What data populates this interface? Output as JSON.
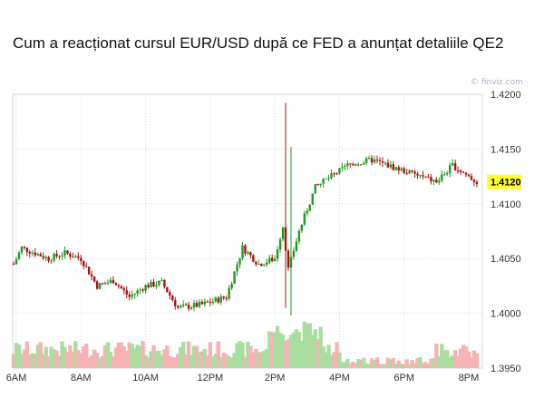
{
  "title": "Cum a reacționat cursul EUR/USD după ce FED a anunțat detaliile QE2",
  "watermark": "© finviz.com",
  "colors": {
    "up": "#1e9a1e",
    "down": "#a31515",
    "volume_up": "#a9dea0",
    "volume_down": "#f5b3b3",
    "grid": "#d9d9d9",
    "last_price_bg": "#ffff33"
  },
  "chart_data": {
    "type": "candlestick",
    "pair": "EUR/USD",
    "x_ticks": [
      "6AM",
      "8AM",
      "10AM",
      "12PM",
      "2PM",
      "4PM",
      "6PM",
      "8PM"
    ],
    "y_ticks": [
      "1.4200",
      "1.4150",
      "1.4100",
      "1.4050",
      "1.4000",
      "1.3950"
    ],
    "ylim": [
      1.395,
      1.42
    ],
    "last_price": "1.4120",
    "grid": true,
    "ohlc_keypoints": [
      {
        "time": "5:55AM",
        "price": 1.4045
      },
      {
        "time": "6:10AM",
        "price": 1.406
      },
      {
        "time": "7:00AM",
        "price": 1.405
      },
      {
        "time": "7:30AM",
        "price": 1.4055
      },
      {
        "time": "8:00AM",
        "price": 1.405
      },
      {
        "time": "8:30AM",
        "price": 1.4025
      },
      {
        "time": "9:00AM",
        "price": 1.403
      },
      {
        "time": "9:30AM",
        "price": 1.4015
      },
      {
        "time": "10:00AM",
        "price": 1.4025
      },
      {
        "time": "10:30AM",
        "price": 1.4028
      },
      {
        "time": "11:00AM",
        "price": 1.4005
      },
      {
        "time": "11:45AM",
        "price": 1.4008
      },
      {
        "time": "12:30PM",
        "price": 1.4015
      },
      {
        "time": "1:00PM",
        "price": 1.406
      },
      {
        "time": "1:30PM",
        "price": 1.4045
      },
      {
        "time": "2:00PM",
        "price": 1.405
      },
      {
        "time": "2:15PM",
        "price": 1.408
      },
      {
        "time": "2:25PM",
        "price": 1.404
      },
      {
        "time": "2:45PM",
        "price": 1.4075
      },
      {
        "time": "3:15PM",
        "price": 1.4115
      },
      {
        "time": "3:45PM",
        "price": 1.4125
      },
      {
        "time": "4:15PM",
        "price": 1.4135
      },
      {
        "time": "5:00PM",
        "price": 1.414
      },
      {
        "time": "6:00PM",
        "price": 1.413
      },
      {
        "time": "6:30PM",
        "price": 1.4125
      },
      {
        "time": "7:00PM",
        "price": 1.412
      },
      {
        "time": "7:30PM",
        "price": 1.4135
      },
      {
        "time": "8:15PM",
        "price": 1.412
      }
    ],
    "spike_high": 1.4192,
    "spike_low": 1.3998
  }
}
